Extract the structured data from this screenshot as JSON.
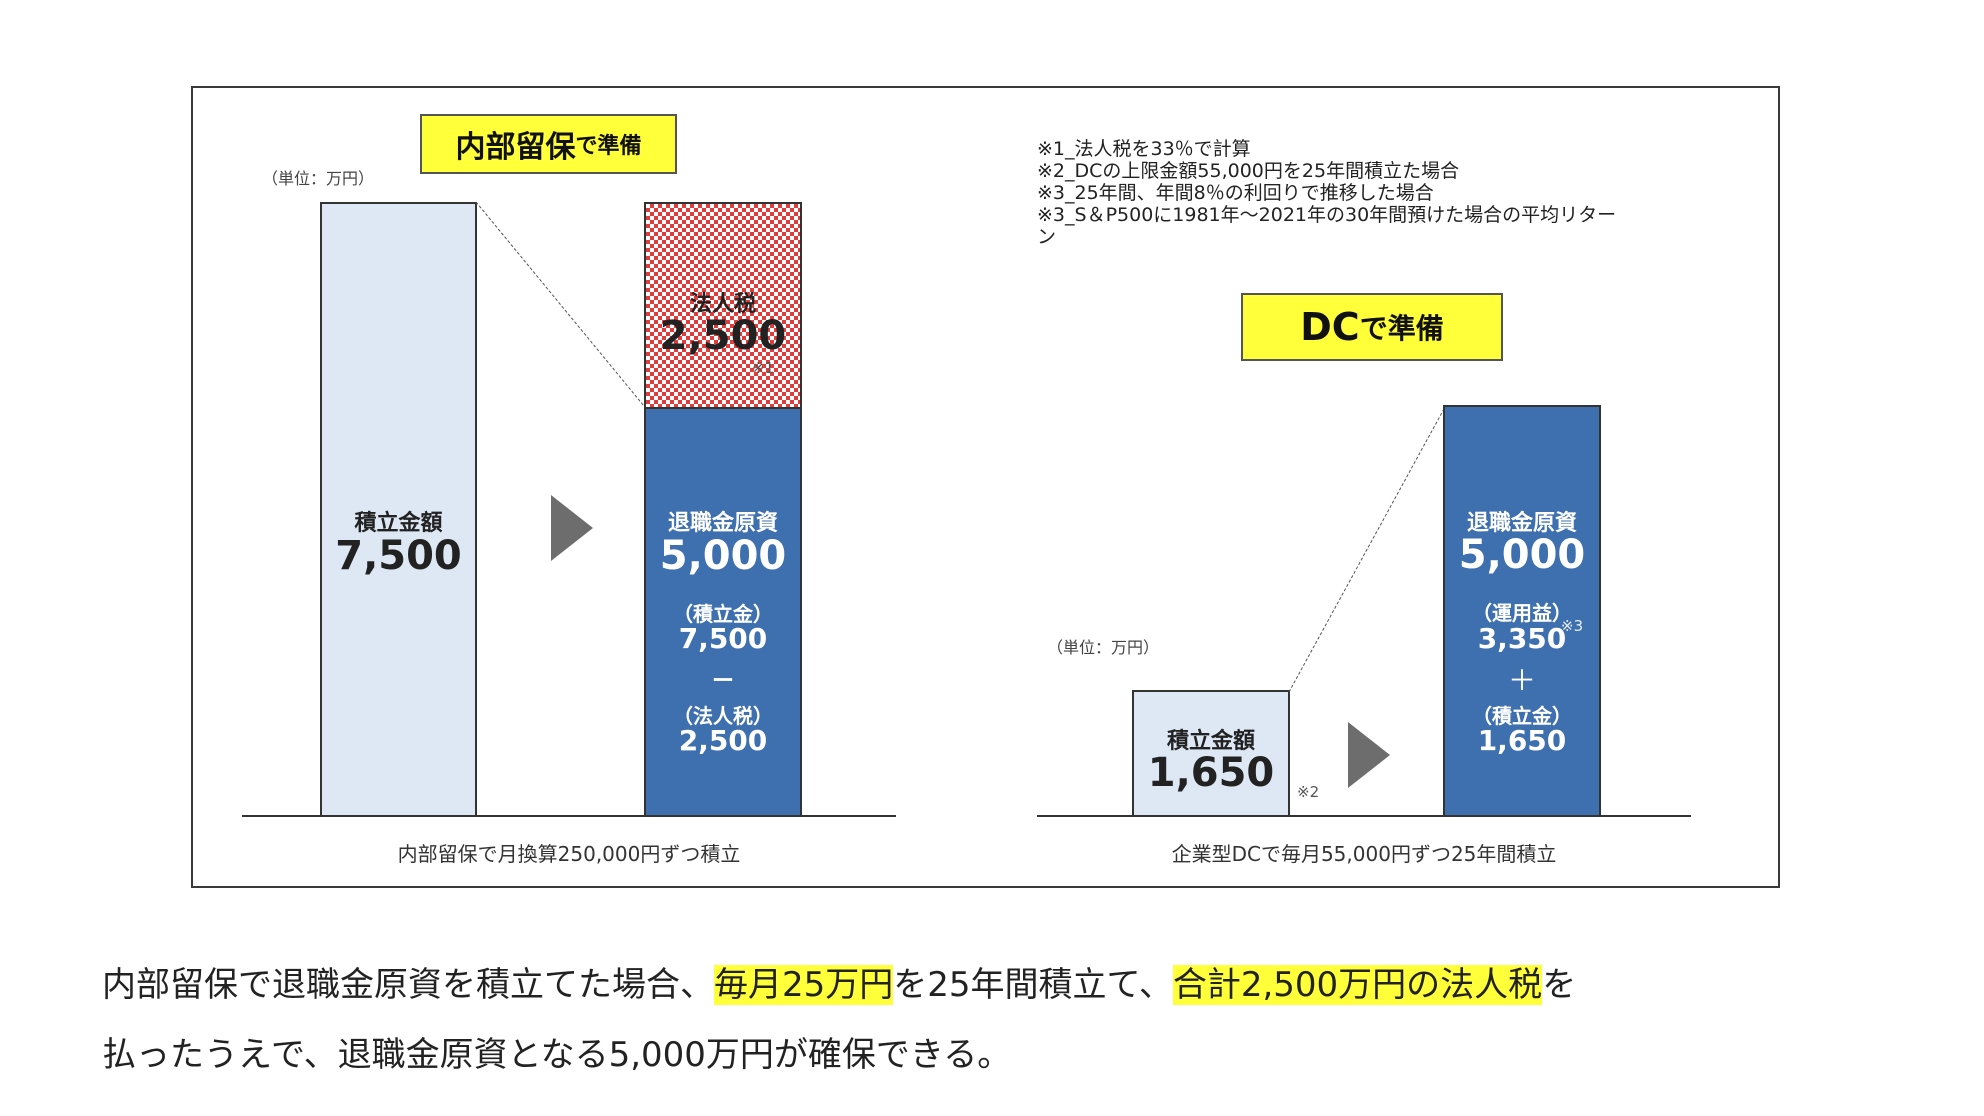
{
  "left_panel": {
    "title_main": "内部留保",
    "title_suffix": "で準備",
    "unit_label": "（単位：万円）",
    "bar1": {
      "label": "積立金額",
      "value": "7,500"
    },
    "bar2_tax": {
      "label": "法人税",
      "value": "2,500",
      "ref": "※1"
    },
    "bar2_main": {
      "label": "退職金原資",
      "value": "5,000",
      "line1": "（積立金）",
      "line2": "7,500",
      "op": "ー",
      "line3": "（法人税）",
      "line4": "2,500"
    },
    "caption": "内部留保で月換算250,000円ずつ積立"
  },
  "right_panel": {
    "notes": [
      "※1_法人税を33％で計算",
      "※2_DCの上限金額55,000円を25年間積立た場合",
      "※3_25年間、年間8％の利回りで推移した場合",
      "※3_S＆P500に1981年〜2021年の30年間預けた場合の平均リター",
      "ン"
    ],
    "title_main": "DC",
    "title_suffix": "で準備",
    "unit_label": "（単位：万円）",
    "bar1": {
      "label": "積立金額",
      "value": "1,650",
      "ref": "※2"
    },
    "bar2": {
      "label": "退職金原資",
      "value": "5,000",
      "line1": "（運用益）",
      "line2": "3,350",
      "ref": "※3",
      "op": "＋",
      "line3": "（積立金）",
      "line4": "1,650"
    },
    "caption": "企業型DCで毎月55,000円ずつ25年間積立"
  },
  "paragraph": {
    "line1_a": "内部留保で退職金原資を積立てた場合、",
    "line1_hl1": "毎月25万円",
    "line1_b": "を25年間積立て、",
    "line1_hl2": "合計2,500万円の法人税",
    "line1_c": "を",
    "line2": "払ったうえで、退職金原資となる5,000万円が確保できる。"
  },
  "colors": {
    "highlight": "#ffff3a",
    "bar_light": "#dde8f4",
    "bar_blue": "#3e6fae",
    "tax_pattern": "#e23b3b",
    "arrow": "#6d6d6d"
  },
  "chart_data": [
    {
      "type": "bar",
      "stacked": true,
      "categories": [
        "積立金額",
        "退職金原資"
      ],
      "series": [
        {
          "name": "退職金原資",
          "values": [
            0,
            5000
          ]
        },
        {
          "name": "法人税",
          "values": [
            0,
            2500
          ]
        },
        {
          "name": "積立金額",
          "values": [
            7500,
            0
          ]
        }
      ],
      "ylim": [
        0,
        7500
      ]
    },
    {
      "type": "bar",
      "categories": [
        "積立金額",
        "退職金原資"
      ],
      "values": [
        1650,
        5000
      ]
    }
  ]
}
